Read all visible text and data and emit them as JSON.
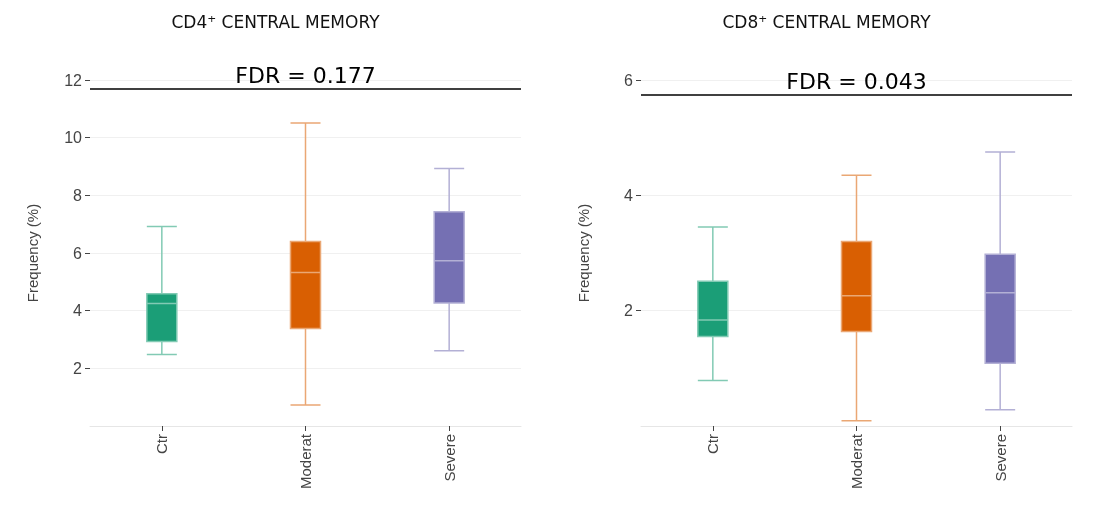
{
  "chart_data": [
    {
      "type": "box",
      "title": "CD4⁺ CENTRAL MEMORY",
      "ylabel": "Frequency (%)",
      "categories": [
        "Ctr",
        "Moderat",
        "Severe"
      ],
      "colors": [
        "#1b9e77",
        "#d95f02",
        "#7570b3"
      ],
      "boxes": [
        {
          "low": 2.48,
          "q1": 2.93,
          "median": 4.25,
          "q3": 4.59,
          "high": 6.92
        },
        {
          "low": 0.73,
          "q1": 3.38,
          "median": 5.32,
          "q3": 6.4,
          "high": 10.51
        },
        {
          "low": 2.61,
          "q1": 4.27,
          "median": 5.73,
          "q3": 7.43,
          "high": 8.93
        }
      ],
      "ylim": [
        0,
        12
      ],
      "yticks": [
        2,
        4,
        6,
        8,
        10,
        12
      ],
      "grid": "y",
      "ref_lines": [
        {
          "axis": "y",
          "value": 11.7,
          "color": "#000000",
          "line_style": "solid"
        }
      ],
      "annotations": [
        {
          "text": "FDR = 0.177",
          "y": 11.7
        }
      ]
    },
    {
      "type": "box",
      "title": "CD8⁺ CENTRAL MEMORY",
      "ylabel": "Frequency (%)",
      "categories": [
        "Ctr",
        "Moderat",
        "Severe"
      ],
      "colors": [
        "#1b9e77",
        "#d95f02",
        "#7570b3"
      ],
      "boxes": [
        {
          "low": 0.79,
          "q1": 1.55,
          "median": 1.84,
          "q3": 2.51,
          "high": 3.45
        },
        {
          "low": 0.09,
          "q1": 1.64,
          "median": 2.26,
          "q3": 3.2,
          "high": 4.35
        },
        {
          "low": 0.28,
          "q1": 1.09,
          "median": 2.31,
          "q3": 2.98,
          "high": 4.75
        }
      ],
      "ylim": [
        0,
        6
      ],
      "yticks": [
        2,
        4,
        6
      ],
      "grid": "y",
      "ref_lines": [
        {
          "axis": "y",
          "value": 5.75,
          "color": "#000000",
          "line_style": "solid"
        }
      ],
      "annotations": [
        {
          "text": "FDR = 0.043",
          "y": 5.75
        }
      ]
    }
  ]
}
